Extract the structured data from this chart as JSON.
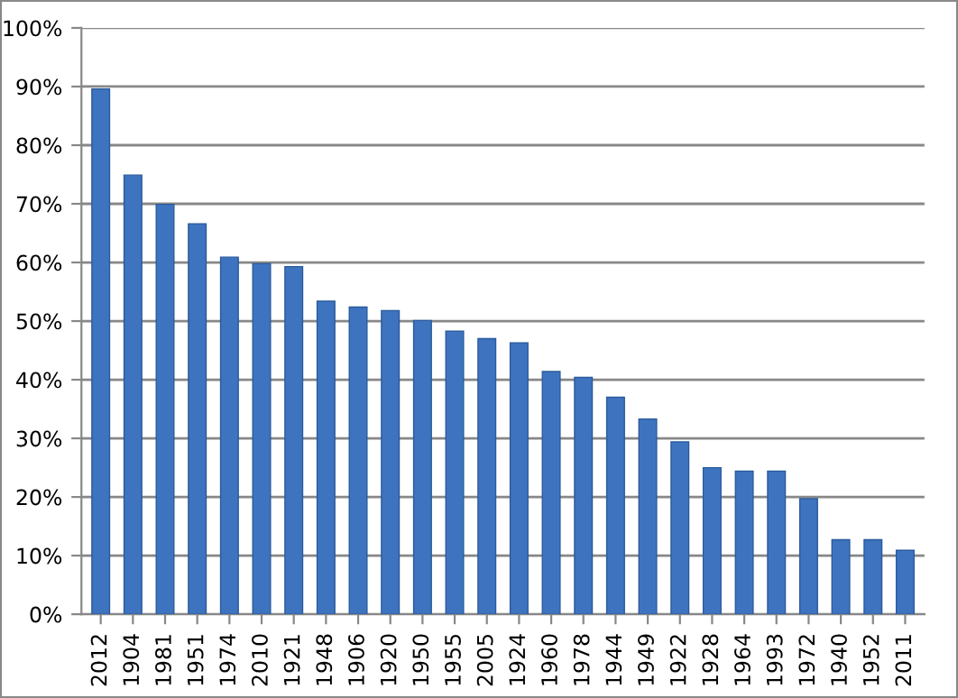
{
  "chart_data": {
    "type": "bar",
    "categories": [
      "2012",
      "1904",
      "1981",
      "1951",
      "1974",
      "2010",
      "1921",
      "1948",
      "1906",
      "1920",
      "1950",
      "1955",
      "2005",
      "1924",
      "1960",
      "1978",
      "1944",
      "1949",
      "1922",
      "1928",
      "1964",
      "1993",
      "1972",
      "1940",
      "1952",
      "2011"
    ],
    "values": [
      89.6,
      74.9,
      69.9,
      66.6,
      60.9,
      59.8,
      59.3,
      53.4,
      52.4,
      51.8,
      50.1,
      48.3,
      47.0,
      46.3,
      41.4,
      40.4,
      37.0,
      33.3,
      29.4,
      25.0,
      24.4,
      24.4,
      19.7,
      12.7,
      12.7,
      10.9
    ],
    "color": "#3e74bf",
    "ylim": [
      0,
      100
    ],
    "yticks": [
      {
        "value": 0,
        "label": "0%"
      },
      {
        "value": 10,
        "label": "10%"
      },
      {
        "value": 20,
        "label": "20%"
      },
      {
        "value": 30,
        "label": "30%"
      },
      {
        "value": 40,
        "label": "40%"
      },
      {
        "value": 50,
        "label": "50%"
      },
      {
        "value": 60,
        "label": "60%"
      },
      {
        "value": 70,
        "label": "70%"
      },
      {
        "value": 80,
        "label": "80%"
      },
      {
        "value": 90,
        "label": "90%"
      },
      {
        "value": 100,
        "label": "100%"
      }
    ],
    "grid": "y"
  }
}
